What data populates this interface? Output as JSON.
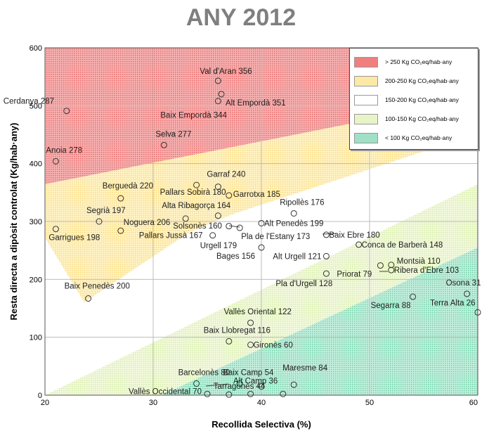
{
  "chart_data": {
    "type": "scatter",
    "title": "ANY 2012",
    "xlabel": "Recollida Selectiva (%)",
    "ylabel": "Resta directa a dipòsit controlat (Kg/hab·any)",
    "xlim": [
      20,
      60
    ],
    "ylim": [
      0,
      600
    ],
    "xticks": [
      20,
      30,
      40,
      50,
      60
    ],
    "yticks": [
      0,
      100,
      200,
      300,
      400,
      500,
      600
    ],
    "grid": true,
    "legend_position": "top-right",
    "legend": [
      {
        "label": "> 250 Kg CO₂eq/hab·any",
        "color": "#f08080"
      },
      {
        "label": "200-250 Kg CO₂eq/hab·any",
        "color": "#fde9a6"
      },
      {
        "label": "150-200 Kg CO₂eq/hab·any",
        "color": "#ffffff"
      },
      {
        "label": "100-150 Kg CO₂eq/hab·any",
        "color": "#e8f4c8"
      },
      {
        "label": "< 100 Kg CO₂eq/hab·any",
        "color": "#9fe0c6"
      }
    ],
    "points": [
      {
        "label": "Val d'Aran 356",
        "x": 36,
        "y": 543
      },
      {
        "label": "Alt Empordà 351",
        "x": 36.3,
        "y": 520
      },
      {
        "label": "Baix Empordà 344",
        "x": 36,
        "y": 508
      },
      {
        "label": "Cerdanya 287",
        "x": 22,
        "y": 491
      },
      {
        "label": "Selva 277",
        "x": 31,
        "y": 432
      },
      {
        "label": "Anoia 278",
        "x": 21,
        "y": 404
      },
      {
        "label": "Garraf 240",
        "x": 36,
        "y": 360
      },
      {
        "label": "Pallars Sobirà 180",
        "x": 34,
        "y": 363
      },
      {
        "label": "Garrotxa 185",
        "x": 37,
        "y": 345
      },
      {
        "label": "Berguedà 220",
        "x": 27,
        "y": 340
      },
      {
        "label": "Alta Ribagorça 164",
        "x": 36,
        "y": 310
      },
      {
        "label": "Ripollès 176",
        "x": 43,
        "y": 314
      },
      {
        "label": "Segrià 197",
        "x": 25,
        "y": 300
      },
      {
        "label": "Noguera 206",
        "x": 27,
        "y": 284
      },
      {
        "label": "Solsonès 160",
        "x": 33,
        "y": 305
      },
      {
        "label": "Alt Penedès 199",
        "x": 40,
        "y": 297
      },
      {
        "label": "Pla de l'Estany 173",
        "x": 38,
        "y": 289
      },
      {
        "label": "Garrigues 198",
        "x": 21,
        "y": 287
      },
      {
        "label": "Urgell 179",
        "x": 35.5,
        "y": 276
      },
      {
        "label": "Pallars Jussà 167",
        "x": 37,
        "y": 292
      },
      {
        "label": "Baix Ebre 180",
        "x": 46,
        "y": 277
      },
      {
        "label": "Conca de Barberà 148",
        "x": 49,
        "y": 260
      },
      {
        "label": "Bages 156",
        "x": 40,
        "y": 255
      },
      {
        "label": "Alt Urgell 121",
        "x": 46,
        "y": 240
      },
      {
        "label": "Montsià 110",
        "x": 52,
        "y": 225
      },
      {
        "label": "Ribera d'Ebre 103",
        "x": 52,
        "y": 216
      },
      {
        "label": "Priorat 79",
        "x": 51,
        "y": 224
      },
      {
        "label": "Pla d'Urgell 128",
        "x": 46,
        "y": 210
      },
      {
        "label": "Osona 31",
        "x": 59,
        "y": 175
      },
      {
        "label": "Segarra 88",
        "x": 54,
        "y": 170
      },
      {
        "label": "Terra Alta 26",
        "x": 60,
        "y": 143
      },
      {
        "label": "Baix Penedès 200",
        "x": 24,
        "y": 167
      },
      {
        "label": "Vallès Oriental 122",
        "x": 39,
        "y": 125
      },
      {
        "label": "Baix Llobregat 116",
        "x": 37,
        "y": 93
      },
      {
        "label": "Gironès 60",
        "x": 39,
        "y": 87
      },
      {
        "label": "Barcelonès 80",
        "x": 34,
        "y": 20
      },
      {
        "label": "Baix Camp 54",
        "x": 38,
        "y": 20
      },
      {
        "label": "Maresme 84",
        "x": 43,
        "y": 18
      },
      {
        "label": "Alt Camp 36",
        "x": 40,
        "y": 15
      },
      {
        "label": "Vallès Occidental 70",
        "x": 35,
        "y": 2
      },
      {
        "label": "Tarragonès 44",
        "x": 37,
        "y": 1
      },
      {
        "label": "",
        "x": 39,
        "y": 2
      },
      {
        "label": "",
        "x": 42,
        "y": 2
      }
    ]
  }
}
